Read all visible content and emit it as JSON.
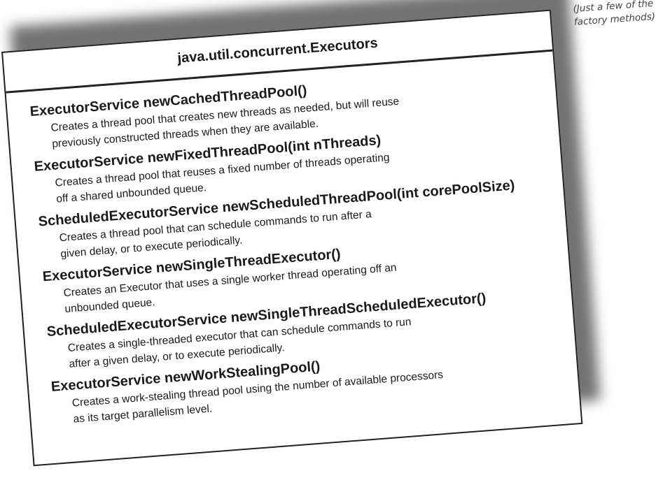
{
  "note": {
    "line1": "(Just a few of the",
    "line2": "factory methods)"
  },
  "card": {
    "title": "java.util.concurrent.Executors",
    "methods": [
      {
        "signature": "ExecutorService newCachedThreadPool()",
        "desc1": "Creates a thread pool that creates new threads as needed, but will reuse",
        "desc2": "previously constructed threads when they are available."
      },
      {
        "signature": "ExecutorService newFixedThreadPool(int nThreads)",
        "desc1": "Creates a thread pool that reuses a fixed number of threads operating",
        "desc2": "off a shared unbounded queue."
      },
      {
        "signature": "ScheduledExecutorService newScheduledThreadPool(int corePoolSize)",
        "desc1": "Creates a thread pool that can schedule commands to run after a",
        "desc2": "given delay, or to execute periodically."
      },
      {
        "signature": "ExecutorService newSingleThreadExecutor()",
        "desc1": "Creates an Executor that uses a single worker thread operating off an",
        "desc2": "unbounded queue."
      },
      {
        "signature": "ScheduledExecutorService newSingleThreadScheduledExecutor()",
        "desc1": "Creates a single-threaded executor that can schedule commands to run",
        "desc2": "after a given delay, or to execute periodically."
      },
      {
        "signature": "ExecutorService newWorkStealingPool()",
        "desc1": "Creates a work-stealing thread pool using the number of available processors",
        "desc2": "as its target parallelism level."
      }
    ]
  }
}
